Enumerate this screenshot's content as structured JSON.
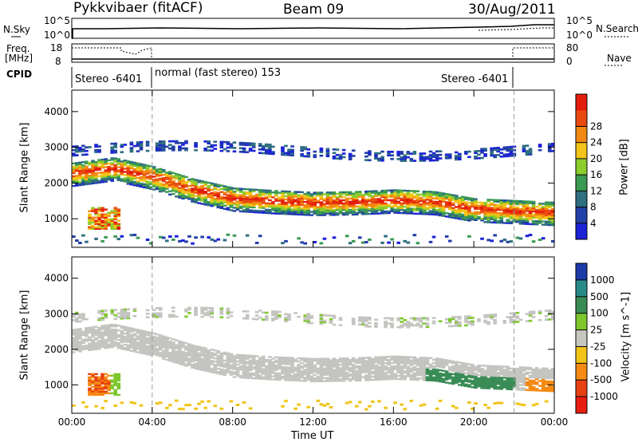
{
  "header": {
    "station": "Pykkvibaer (fitACF)",
    "beam": "Beam 09",
    "date": "30/Aug/2011"
  },
  "small_panels": {
    "nsky_label": "N.Sky",
    "nsky_ticks": [
      "10^5",
      "10^0"
    ],
    "nsearch_label": "N.Search",
    "nsearch_ticks": [
      "10^5",
      "10^0"
    ],
    "freq_label_1": "Freq.",
    "freq_label_2": "[MHz]",
    "freq_ticks": [
      "18",
      "8"
    ],
    "nave_label": "Nave",
    "nave_ticks": [
      "80",
      "0"
    ],
    "cpid_label": "CPID",
    "cpid_segments": [
      "Stereo -6401",
      "normal (fast stereo) 153",
      "Stereo -6401"
    ]
  },
  "chart_data": [
    {
      "type": "heatmap",
      "name": "power",
      "ylabel": "Slant Range [km]",
      "xlabel": "Time UT",
      "y_ticks": [
        "1000",
        "2000",
        "3000",
        "4000"
      ],
      "ylim": [
        200,
        4600
      ],
      "x_ticks": [
        "00:00",
        "04:00",
        "08:00",
        "12:00",
        "16:00",
        "20:00",
        "00:00"
      ],
      "xlim_hours": [
        0,
        24
      ],
      "colorbar_label": "Power [dB]",
      "colorbar_ticks": [
        "4",
        "8",
        "12",
        "16",
        "20",
        "24",
        "28"
      ],
      "colorbar_colors": [
        "#1c22d8",
        "#233fa8",
        "#2f6f80",
        "#3b9a52",
        "#8ccc2c",
        "#f3c419",
        "#f28a12",
        "#ea4a0f",
        "#e31c0c"
      ],
      "cpid_change_hours": [
        4.0,
        22.0
      ],
      "features": [
        {
          "label": "main band",
          "range_km": [
            2450,
            2200,
            1750,
            1450,
            1450,
            1500,
            1250
          ]
        },
        {
          "label": "upper band",
          "range_km": [
            2900,
            3100,
            3000,
            2800,
            3050
          ]
        },
        {
          "label": "early patch",
          "hours": [
            0.8,
            2.3
          ],
          "range_km": [
            750,
            1300
          ]
        }
      ]
    },
    {
      "type": "heatmap",
      "name": "velocity",
      "ylabel": "Slant Range [km]",
      "xlabel": "Time UT",
      "y_ticks": [
        "1000",
        "2000",
        "3000",
        "4000"
      ],
      "ylim": [
        200,
        4600
      ],
      "x_ticks": [
        "00:00",
        "04:00",
        "08:00",
        "12:00",
        "16:00",
        "20:00",
        "00:00"
      ],
      "xlim_hours": [
        0,
        24
      ],
      "colorbar_label": "Velocity [m s^-1]",
      "colorbar_ticks": [
        "1000",
        "500",
        "100",
        "25",
        "-25",
        "-100",
        "-500",
        "-1000"
      ],
      "colorbar_colors": [
        "#1c3aa8",
        "#2a8a8a",
        "#3a8c56",
        "#7ec82e",
        "#c7c7c2",
        "#f1c417",
        "#f58a14",
        "#e84010",
        "#e81d10"
      ],
      "ground_scatter_color": "#c4c4c0"
    }
  ]
}
